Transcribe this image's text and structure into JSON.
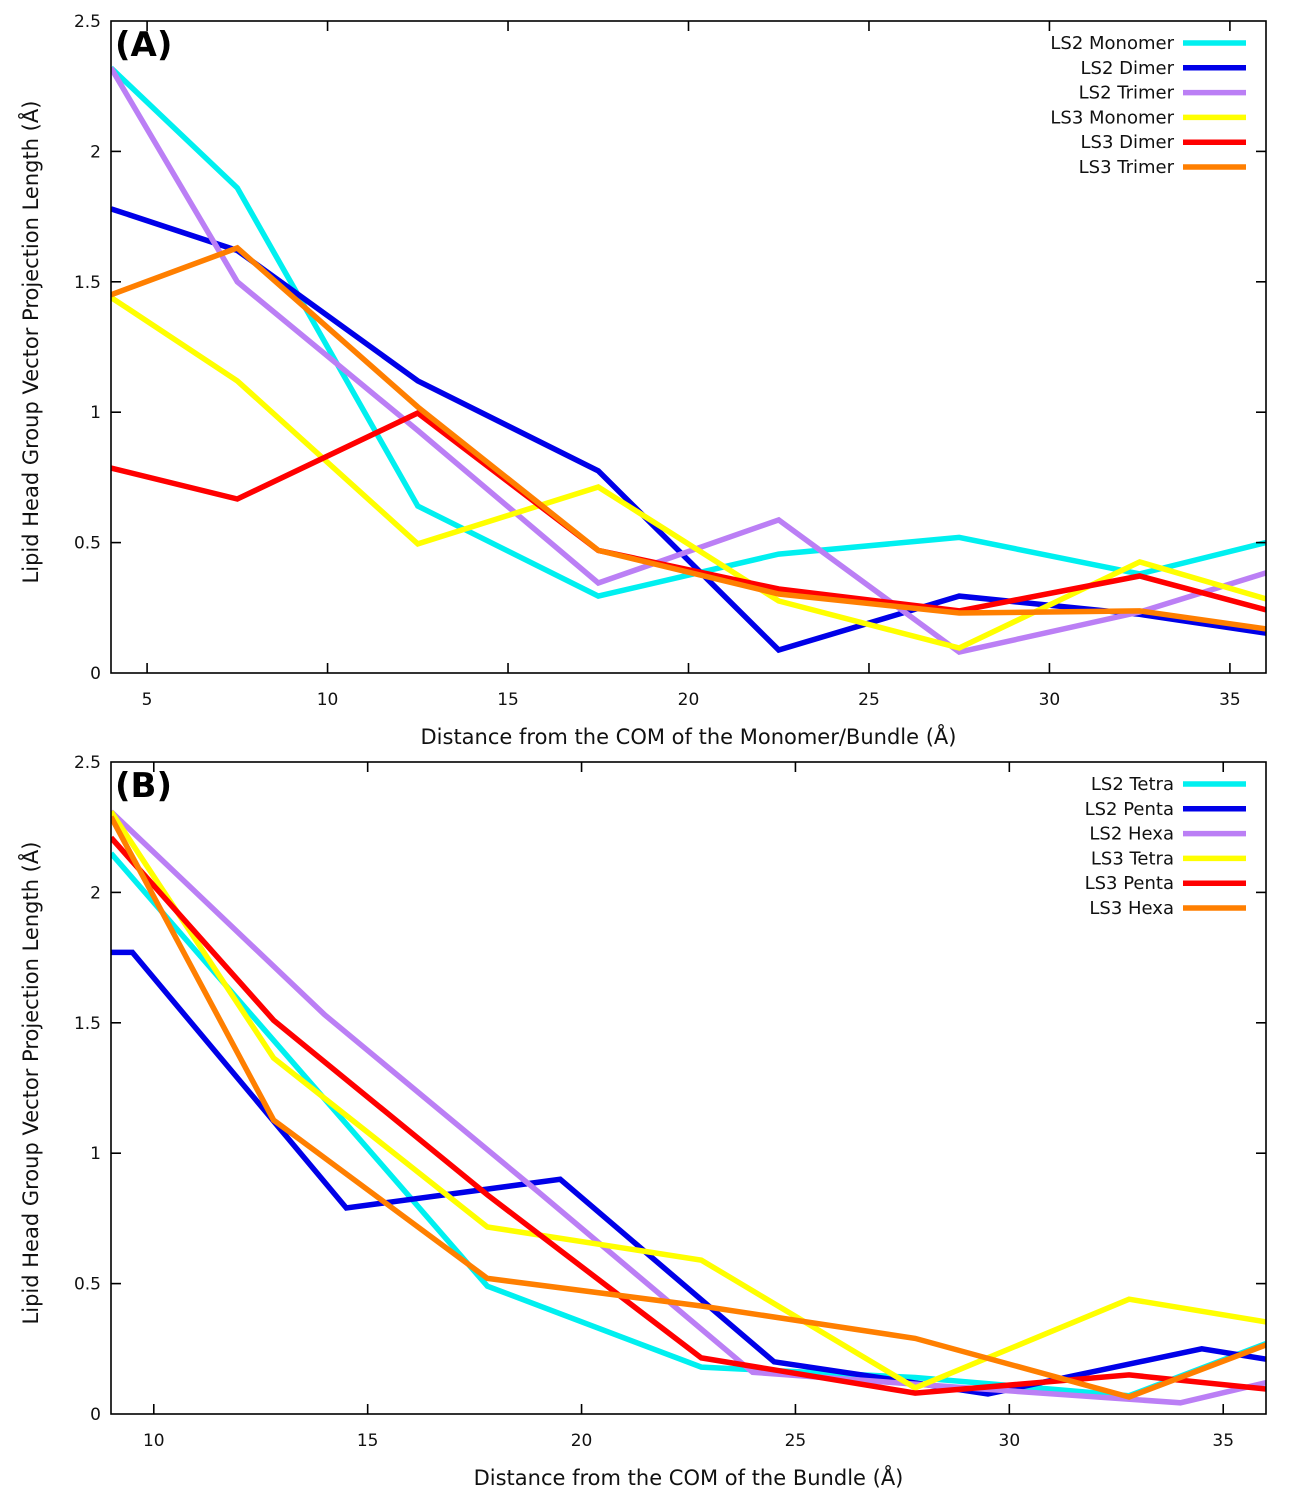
{
  "chart_data": [
    {
      "type": "line",
      "panel_label": "(A)",
      "title": "",
      "xlabel": "Distance from the COM of the Monomer/Bundle (Å)",
      "ylabel": "Lipid Head Group Vector Projection Length (Å)",
      "xlim": [
        4,
        36
      ],
      "ylim": [
        0,
        2.5
      ],
      "xticks": [
        5,
        10,
        15,
        20,
        25,
        30,
        35
      ],
      "yticks": [
        0,
        0.5,
        1,
        1.5,
        2,
        2.5
      ],
      "ytick_labels": [
        "0",
        "0.5",
        "1",
        "1.5",
        "2",
        "2.5"
      ],
      "grid": false,
      "legend_position": "top-right",
      "series": [
        {
          "name": "LS2 Monomer",
          "color": "#00f0f0",
          "x": [
            4,
            7.5,
            12.5,
            17.5,
            22.5,
            27.5,
            32.5,
            36
          ],
          "y": [
            2.32,
            1.86,
            0.64,
            0.295,
            0.456,
            0.52,
            0.38,
            0.5
          ]
        },
        {
          "name": "LS2 Dimer",
          "color": "#0000e8",
          "x": [
            4,
            7.5,
            12.5,
            17.5,
            22.5,
            27.5,
            32.5,
            36
          ],
          "y": [
            1.78,
            1.62,
            1.12,
            0.775,
            0.088,
            0.295,
            0.225,
            0.153
          ]
        },
        {
          "name": "LS2 Trimer",
          "color": "#bb7ff5",
          "x": [
            4,
            7.5,
            12.5,
            17.5,
            22.5,
            27.5,
            32.5,
            36
          ],
          "y": [
            2.32,
            1.5,
            0.93,
            0.345,
            0.587,
            0.08,
            0.234,
            0.384
          ]
        },
        {
          "name": "LS3 Monomer",
          "color": "#ffff00",
          "x": [
            4,
            7.5,
            12.5,
            17.5,
            22.5,
            27.5,
            32.5,
            36
          ],
          "y": [
            1.44,
            1.12,
            0.495,
            0.713,
            0.276,
            0.096,
            0.426,
            0.284
          ]
        },
        {
          "name": "LS3 Dimer",
          "color": "#ff0000",
          "x": [
            4,
            7.5,
            12.5,
            17.5,
            22.5,
            27.5,
            32.5,
            36
          ],
          "y": [
            0.786,
            0.667,
            0.997,
            0.47,
            0.322,
            0.238,
            0.372,
            0.242
          ]
        },
        {
          "name": "LS3 Trimer",
          "color": "#ff7f00",
          "x": [
            4,
            7.5,
            12.5,
            17.5,
            22.5,
            27.5,
            32.5,
            36
          ],
          "y": [
            1.45,
            1.63,
            1.02,
            0.47,
            0.303,
            0.23,
            0.238,
            0.169
          ]
        }
      ]
    },
    {
      "type": "line",
      "panel_label": "(B)",
      "title": "",
      "xlabel": "Distance from the COM of the Bundle (Å)",
      "ylabel": "Lipid Head Group Vector Projection Length (Å)",
      "xlim": [
        9,
        36
      ],
      "ylim": [
        0,
        2.5
      ],
      "xticks": [
        10,
        15,
        20,
        25,
        30,
        35
      ],
      "yticks": [
        0,
        0.5,
        1,
        1.5,
        2,
        2.5
      ],
      "ytick_labels": [
        "0",
        "0.5",
        "1",
        "1.5",
        "2",
        "2.5"
      ],
      "grid": false,
      "legend_position": "top-right",
      "series": [
        {
          "name": "LS2 Tetra",
          "color": "#00f0f0",
          "x": [
            9,
            17.8,
            22.8,
            27.8,
            32.8,
            36
          ],
          "y": [
            2.15,
            0.49,
            0.18,
            0.14,
            0.07,
            0.27
          ]
        },
        {
          "name": "LS2 Penta",
          "color": "#0000e8",
          "x": [
            9,
            9.5,
            14.5,
            19.5,
            24.5,
            29.5,
            34.5,
            36
          ],
          "y": [
            1.77,
            1.77,
            0.79,
            0.9,
            0.2,
            0.077,
            0.25,
            0.21
          ]
        },
        {
          "name": "LS2 Hexa",
          "color": "#bb7ff5",
          "x": [
            9,
            14,
            19,
            24,
            29,
            34,
            36
          ],
          "y": [
            2.31,
            1.53,
            0.85,
            0.16,
            0.1,
            0.043,
            0.12
          ]
        },
        {
          "name": "LS3 Tetra",
          "color": "#ffff00",
          "x": [
            9,
            12.8,
            17.8,
            22.8,
            27.8,
            32.8,
            36
          ],
          "y": [
            2.31,
            1.365,
            0.717,
            0.59,
            0.1,
            0.44,
            0.353
          ]
        },
        {
          "name": "LS3 Penta",
          "color": "#ff0000",
          "x": [
            9,
            12.8,
            17.8,
            22.8,
            27.8,
            32.8,
            36
          ],
          "y": [
            2.21,
            1.51,
            0.84,
            0.215,
            0.08,
            0.15,
            0.096
          ]
        },
        {
          "name": "LS3 Hexa",
          "color": "#ff7f00",
          "x": [
            9,
            12.8,
            17.8,
            22.8,
            27.8,
            32.8,
            36
          ],
          "y": [
            2.29,
            1.127,
            0.52,
            0.414,
            0.29,
            0.065,
            0.265
          ]
        }
      ]
    }
  ]
}
